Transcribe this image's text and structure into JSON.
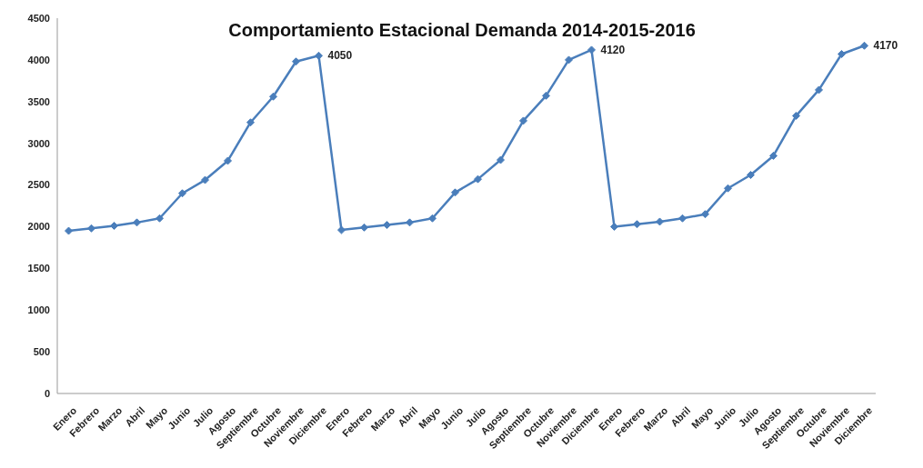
{
  "chart_data": {
    "type": "line",
    "title": "Comportamiento Estacional  Demanda 2014-2015-2016",
    "categories": [
      "Enero",
      "Febrero",
      "Marzo",
      "Abril",
      "Mayo",
      "Junio",
      "Julio",
      "Agosto",
      "Septiembre",
      "Octubre",
      "Noviembre",
      "Diciembre",
      "Enero",
      "Febrero",
      "Marzo",
      "Abril",
      "Mayo",
      "Junio",
      "Julio",
      "Agosto",
      "Septiembre",
      "Octubre",
      "Noviembre",
      "Diciembre",
      "Enero",
      "Febrero",
      "Marzo",
      "Abril",
      "Mayo",
      "Junio",
      "Julio",
      "Agosto",
      "Septiembre",
      "Octubre",
      "Noviembre",
      "Diciembre"
    ],
    "series": [
      {
        "color": "#4a7ebb",
        "values": [
          1950,
          1980,
          2010,
          2050,
          2100,
          2400,
          2560,
          2790,
          3250,
          3560,
          3980,
          4050,
          1960,
          1990,
          2020,
          2050,
          2100,
          2410,
          2570,
          2800,
          3270,
          3570,
          4000,
          4120,
          2000,
          2030,
          2060,
          2100,
          2150,
          2460,
          2620,
          2850,
          3330,
          3640,
          4070,
          4170
        ],
        "value_labels": [
          null,
          null,
          null,
          null,
          null,
          null,
          null,
          null,
          null,
          null,
          null,
          "4050",
          null,
          null,
          null,
          null,
          null,
          null,
          null,
          null,
          null,
          null,
          null,
          "4120",
          null,
          null,
          null,
          null,
          null,
          null,
          null,
          null,
          null,
          null,
          null,
          "4170"
        ]
      }
    ],
    "ylim": [
      0,
      4500
    ],
    "yticks": [
      0,
      500,
      1000,
      1500,
      2000,
      2500,
      3000,
      3500,
      4000,
      4500
    ],
    "grid": false,
    "legend": false,
    "marker": "diamond",
    "line_style": "solid"
  }
}
